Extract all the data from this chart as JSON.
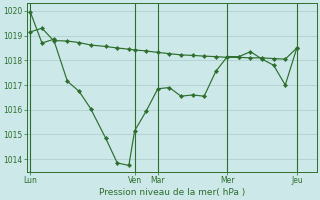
{
  "background_color": "#cce8e8",
  "grid_color": "#aacccc",
  "line_color": "#2d6e2d",
  "marker_color": "#2d6e2d",
  "xlabel_text": "Pression niveau de la mer( hPa )",
  "ylim": [
    1013.5,
    1020.3
  ],
  "yticks": [
    1014,
    1015,
    1016,
    1017,
    1018,
    1019,
    1020
  ],
  "xlim": [
    0,
    25
  ],
  "day_labels": [
    "Lun",
    "Ven",
    "Mar",
    "Mer",
    "Jeu"
  ],
  "day_positions": [
    0.3,
    9.3,
    11.3,
    17.3,
    23.3
  ],
  "vline_positions": [
    0.3,
    9.3,
    11.3,
    17.3,
    23.3
  ],
  "series1_x": [
    0.3,
    1.3,
    2.3,
    3.5,
    4.5,
    5.5,
    6.8,
    7.8,
    8.8,
    9.3,
    10.3,
    11.3,
    12.3,
    13.3,
    14.3,
    15.3,
    16.3,
    17.3,
    18.3,
    19.3,
    20.3,
    21.3,
    22.3,
    23.3
  ],
  "series1_y": [
    1019.95,
    1018.7,
    1018.85,
    1017.15,
    1016.75,
    1016.05,
    1014.85,
    1013.85,
    1013.75,
    1015.15,
    1015.95,
    1016.85,
    1016.9,
    1016.55,
    1016.6,
    1016.55,
    1017.55,
    1018.15,
    1018.15,
    1018.35,
    1018.05,
    1017.8,
    1017.0,
    1018.5
  ],
  "series2_x": [
    0.3,
    1.3,
    2.3,
    3.5,
    4.5,
    5.5,
    6.8,
    7.8,
    8.8,
    9.3,
    10.3,
    11.3,
    12.3,
    13.3,
    14.3,
    15.3,
    16.3,
    17.3,
    18.3,
    19.3,
    20.3,
    21.3,
    22.3,
    23.3
  ],
  "series2_y": [
    1019.15,
    1019.3,
    1018.8,
    1018.78,
    1018.72,
    1018.62,
    1018.56,
    1018.5,
    1018.45,
    1018.42,
    1018.38,
    1018.32,
    1018.27,
    1018.22,
    1018.2,
    1018.17,
    1018.15,
    1018.12,
    1018.12,
    1018.1,
    1018.1,
    1018.07,
    1018.05,
    1018.5
  ]
}
